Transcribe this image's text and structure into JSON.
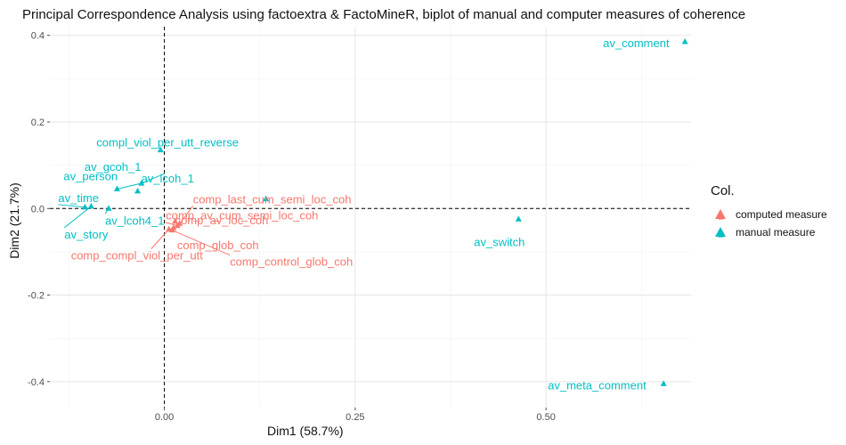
{
  "chart_data": {
    "type": "scatter",
    "title": "Principal Correspondence Analysis using factoextra & FactoMineR, biplot of manual and computer measures of coherence",
    "xlabel": "Dim1 (58.7%)",
    "ylabel": "Dim2 (21.7%)",
    "xlim": [
      -0.15,
      0.69
    ],
    "ylim": [
      -0.46,
      0.42
    ],
    "xticks": [
      0.0,
      0.25,
      0.5
    ],
    "xtick_labels": [
      "0.00",
      "0.25",
      "0.50"
    ],
    "yticks": [
      -0.4,
      -0.2,
      0.0,
      0.2,
      0.4
    ],
    "ytick_labels": [
      "-0.4",
      "-0.2",
      "0.0",
      "0.2",
      "0.4"
    ],
    "grid": true,
    "legend": {
      "title": "Col.",
      "position": "right",
      "entries": [
        {
          "label": "computed measure",
          "color": "#F8766D"
        },
        {
          "label": "manual measure",
          "color": "#00BFC4"
        }
      ]
    },
    "series": [
      {
        "name": "computed measure",
        "color": "#F8766D",
        "points": [
          {
            "label": "comp_last_cum_semi_loc_coh",
            "x": 0.02,
            "y": -0.035
          },
          {
            "label": "comp_av_cum_semi_loc_coh",
            "x": 0.017,
            "y": -0.04
          },
          {
            "label": "comp_av_loc_coh",
            "x": 0.014,
            "y": -0.03
          },
          {
            "label": "comp_glob_coh",
            "x": 0.012,
            "y": -0.045
          },
          {
            "label": "comp_compl_viol_per_utt",
            "x": 0.006,
            "y": -0.048
          },
          {
            "label": "comp_control_glob_coh",
            "x": 0.01,
            "y": -0.05
          }
        ]
      },
      {
        "name": "manual measure",
        "color": "#00BFC4",
        "points": [
          {
            "label": "av_comment",
            "x": 0.682,
            "y": 0.385
          },
          {
            "label": "compl_viol_per_utt_reverse",
            "x": -0.005,
            "y": 0.135
          },
          {
            "label": "av_gcoh_1",
            "x": -0.03,
            "y": 0.058
          },
          {
            "label": "av_person",
            "x": -0.062,
            "y": 0.045
          },
          {
            "label": "av_lcoh_1",
            "x": -0.035,
            "y": 0.04
          },
          {
            "label": "av_time",
            "x": -0.104,
            "y": 0.003
          },
          {
            "label": "av_story",
            "x": -0.096,
            "y": 0.005
          },
          {
            "label": "av_lcoh4_1",
            "x": -0.073,
            "y": 0.0
          },
          {
            "label": "",
            "x": 0.133,
            "y": 0.022
          },
          {
            "label": "av_switch",
            "x": 0.464,
            "y": -0.025
          },
          {
            "label": "av_meta_comment",
            "x": 0.654,
            "y": -0.405
          }
        ]
      }
    ]
  }
}
